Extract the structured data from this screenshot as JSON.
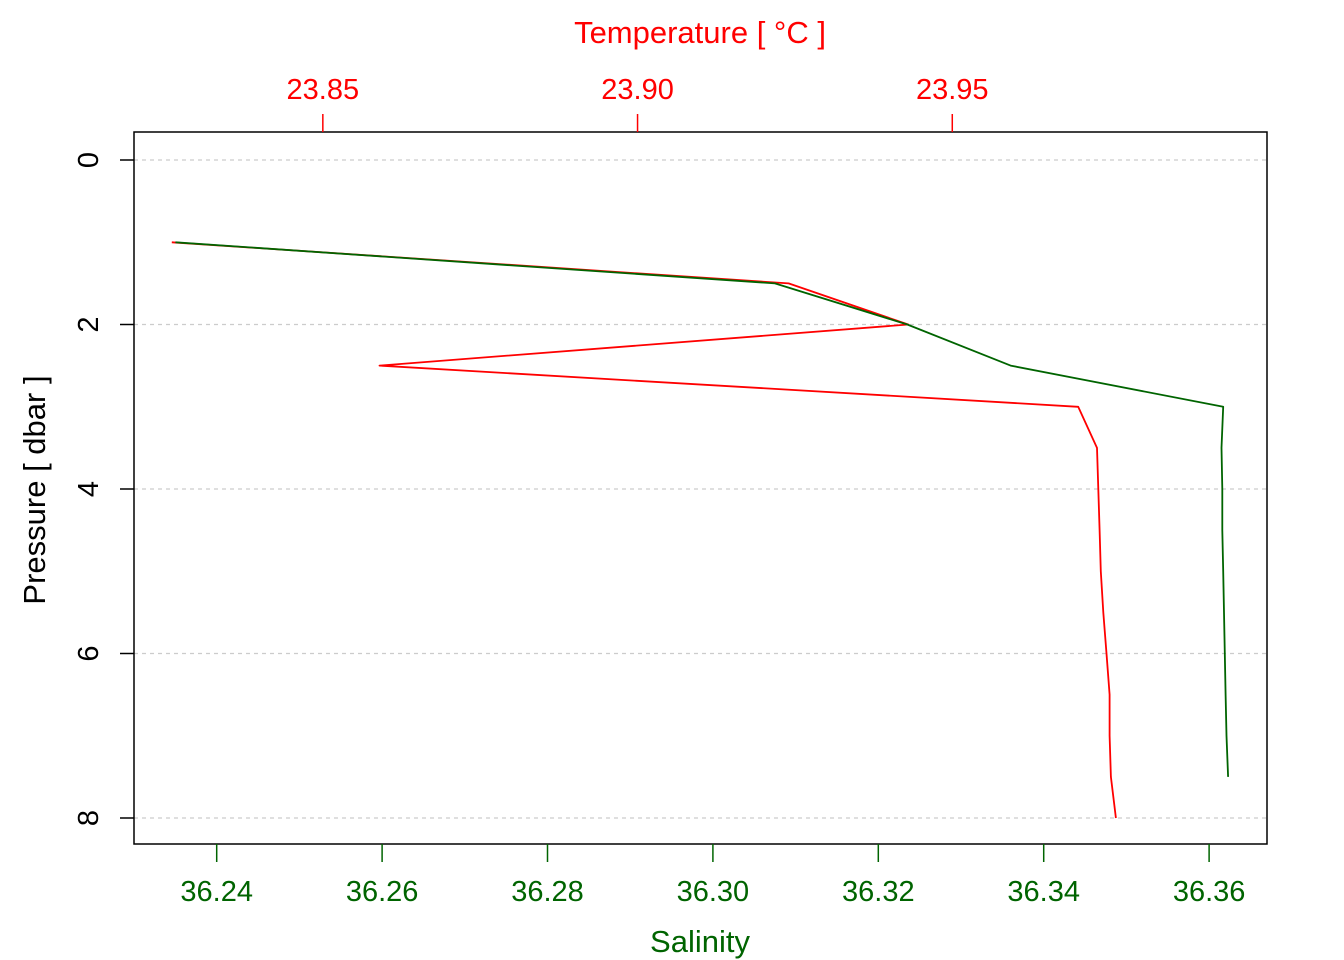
{
  "colors": {
    "temperature": "#ff0000",
    "salinity": "#006400",
    "frame": "#000000",
    "grid": "#cccccc"
  },
  "chart_data": {
    "type": "line",
    "orientation": "profile",
    "grid": true,
    "y_axis": {
      "label": "Pressure [ dbar ]",
      "range": [
        0,
        8
      ],
      "reversed": true,
      "ticks": [
        0,
        2,
        4,
        6,
        8
      ],
      "tick_labels": [
        "0",
        "2",
        "4",
        "6",
        "8"
      ]
    },
    "x_top": {
      "label": "Temperature [ °C ]",
      "range": [
        23.82,
        24.0
      ],
      "ticks": [
        23.85,
        23.9,
        23.95
      ],
      "tick_labels": [
        "23.85",
        "23.90",
        "23.95"
      ]
    },
    "x_bottom": {
      "label": "Salinity",
      "range": [
        36.23,
        36.367
      ],
      "ticks": [
        36.24,
        36.26,
        36.28,
        36.3,
        36.32,
        36.34,
        36.36
      ],
      "tick_labels": [
        "36.24",
        "36.26",
        "36.28",
        "36.30",
        "36.32",
        "36.34",
        "36.36"
      ]
    },
    "series": [
      {
        "axis": "top",
        "pressure": [
          1.0,
          1.5,
          2.0,
          2.5,
          3.0,
          3.5,
          4.0,
          4.5,
          5.0,
          5.5,
          6.0,
          6.5,
          7.0,
          7.5,
          8.0
        ],
        "values": [
          23.826,
          23.924,
          23.943,
          23.859,
          23.97,
          23.973,
          23.9732,
          23.9734,
          23.9736,
          23.974,
          23.9745,
          23.975,
          23.975,
          23.9752,
          23.976
        ]
      },
      {
        "axis": "bottom",
        "pressure": [
          1.0,
          1.5,
          2.0,
          2.5,
          3.0,
          3.5,
          4.0,
          4.5,
          5.0,
          5.5,
          6.0,
          6.5,
          7.0,
          7.5
        ],
        "values": [
          36.235,
          36.3075,
          36.3235,
          36.336,
          36.3617,
          36.3615,
          36.3616,
          36.3616,
          36.3617,
          36.3618,
          36.3619,
          36.362,
          36.3621,
          36.3623
        ]
      }
    ]
  }
}
